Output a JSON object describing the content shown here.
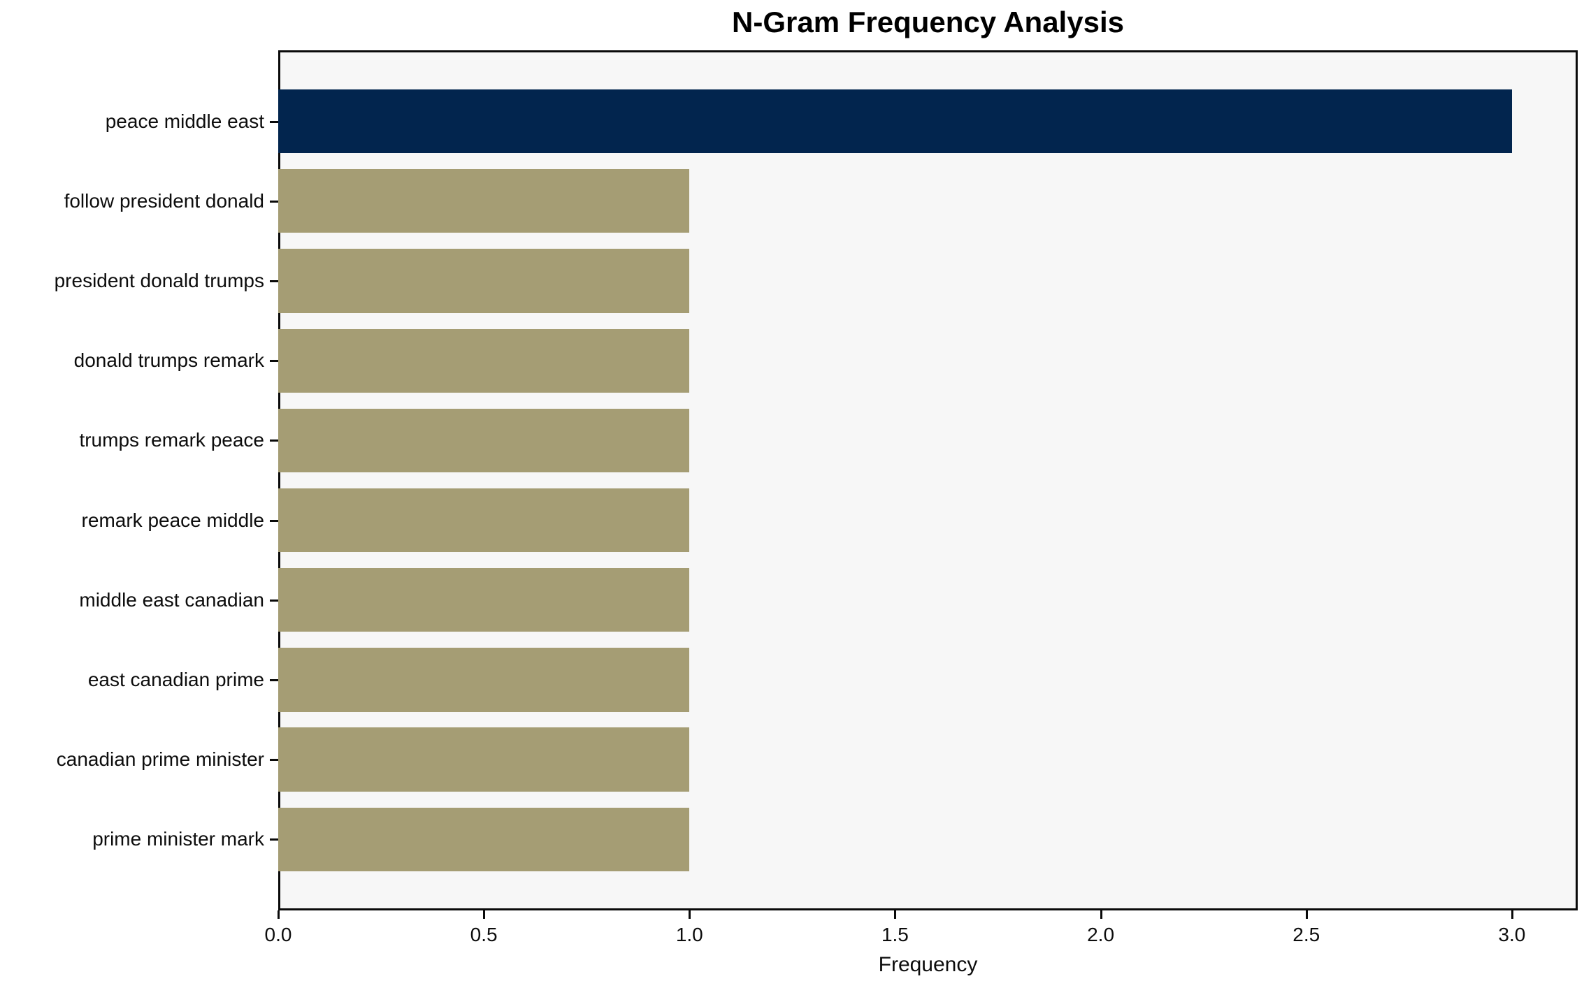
{
  "chart_data": {
    "type": "bar",
    "orientation": "horizontal",
    "title": "N-Gram Frequency Analysis",
    "xlabel": "Frequency",
    "ylabel": "",
    "categories": [
      "peace middle east",
      "follow president donald",
      "president donald trumps",
      "donald trumps remark",
      "trumps remark peace",
      "remark peace middle",
      "middle east canadian",
      "east canadian prime",
      "canadian prime minister",
      "prime minister mark"
    ],
    "values": [
      3,
      1,
      1,
      1,
      1,
      1,
      1,
      1,
      1,
      1
    ],
    "xlim": [
      0,
      3.16
    ],
    "xticks": [
      0,
      0.5,
      1,
      1.5,
      2,
      2.5,
      3
    ],
    "xtick_labels": [
      "0.0",
      "0.5",
      "1.0",
      "1.5",
      "2.0",
      "2.5",
      "3.0"
    ],
    "grid": false,
    "legend": null,
    "highlight_index": 0,
    "bar_height_fraction": 0.8,
    "colors": {
      "highlight_bar": "#02254e",
      "default_bar": "#a59d74",
      "plot_background": "#f7f7f7",
      "figure_background": "#ffffff",
      "spine": "#0a0a0a",
      "text": "#0d0d0d"
    }
  }
}
